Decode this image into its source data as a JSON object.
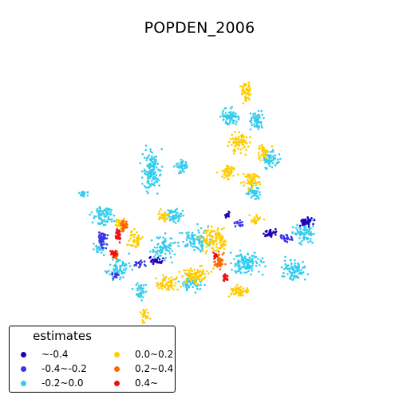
{
  "title": "POPDEN_2006",
  "legend": {
    "title": "estimates",
    "items": [
      {
        "label": "~-0.4",
        "color": "#2200bb"
      },
      {
        "label": "-0.4~-0.2",
        "color": "#3a35e6"
      },
      {
        "label": "-0.2~0.0",
        "color": "#33ccee"
      },
      {
        "label": "0.0~0.2",
        "color": "#ffcc00"
      },
      {
        "label": "0.2~0.4",
        "color": "#ff6600"
      },
      {
        "label": "0.4~",
        "color": "#ee1111"
      }
    ]
  }
}
